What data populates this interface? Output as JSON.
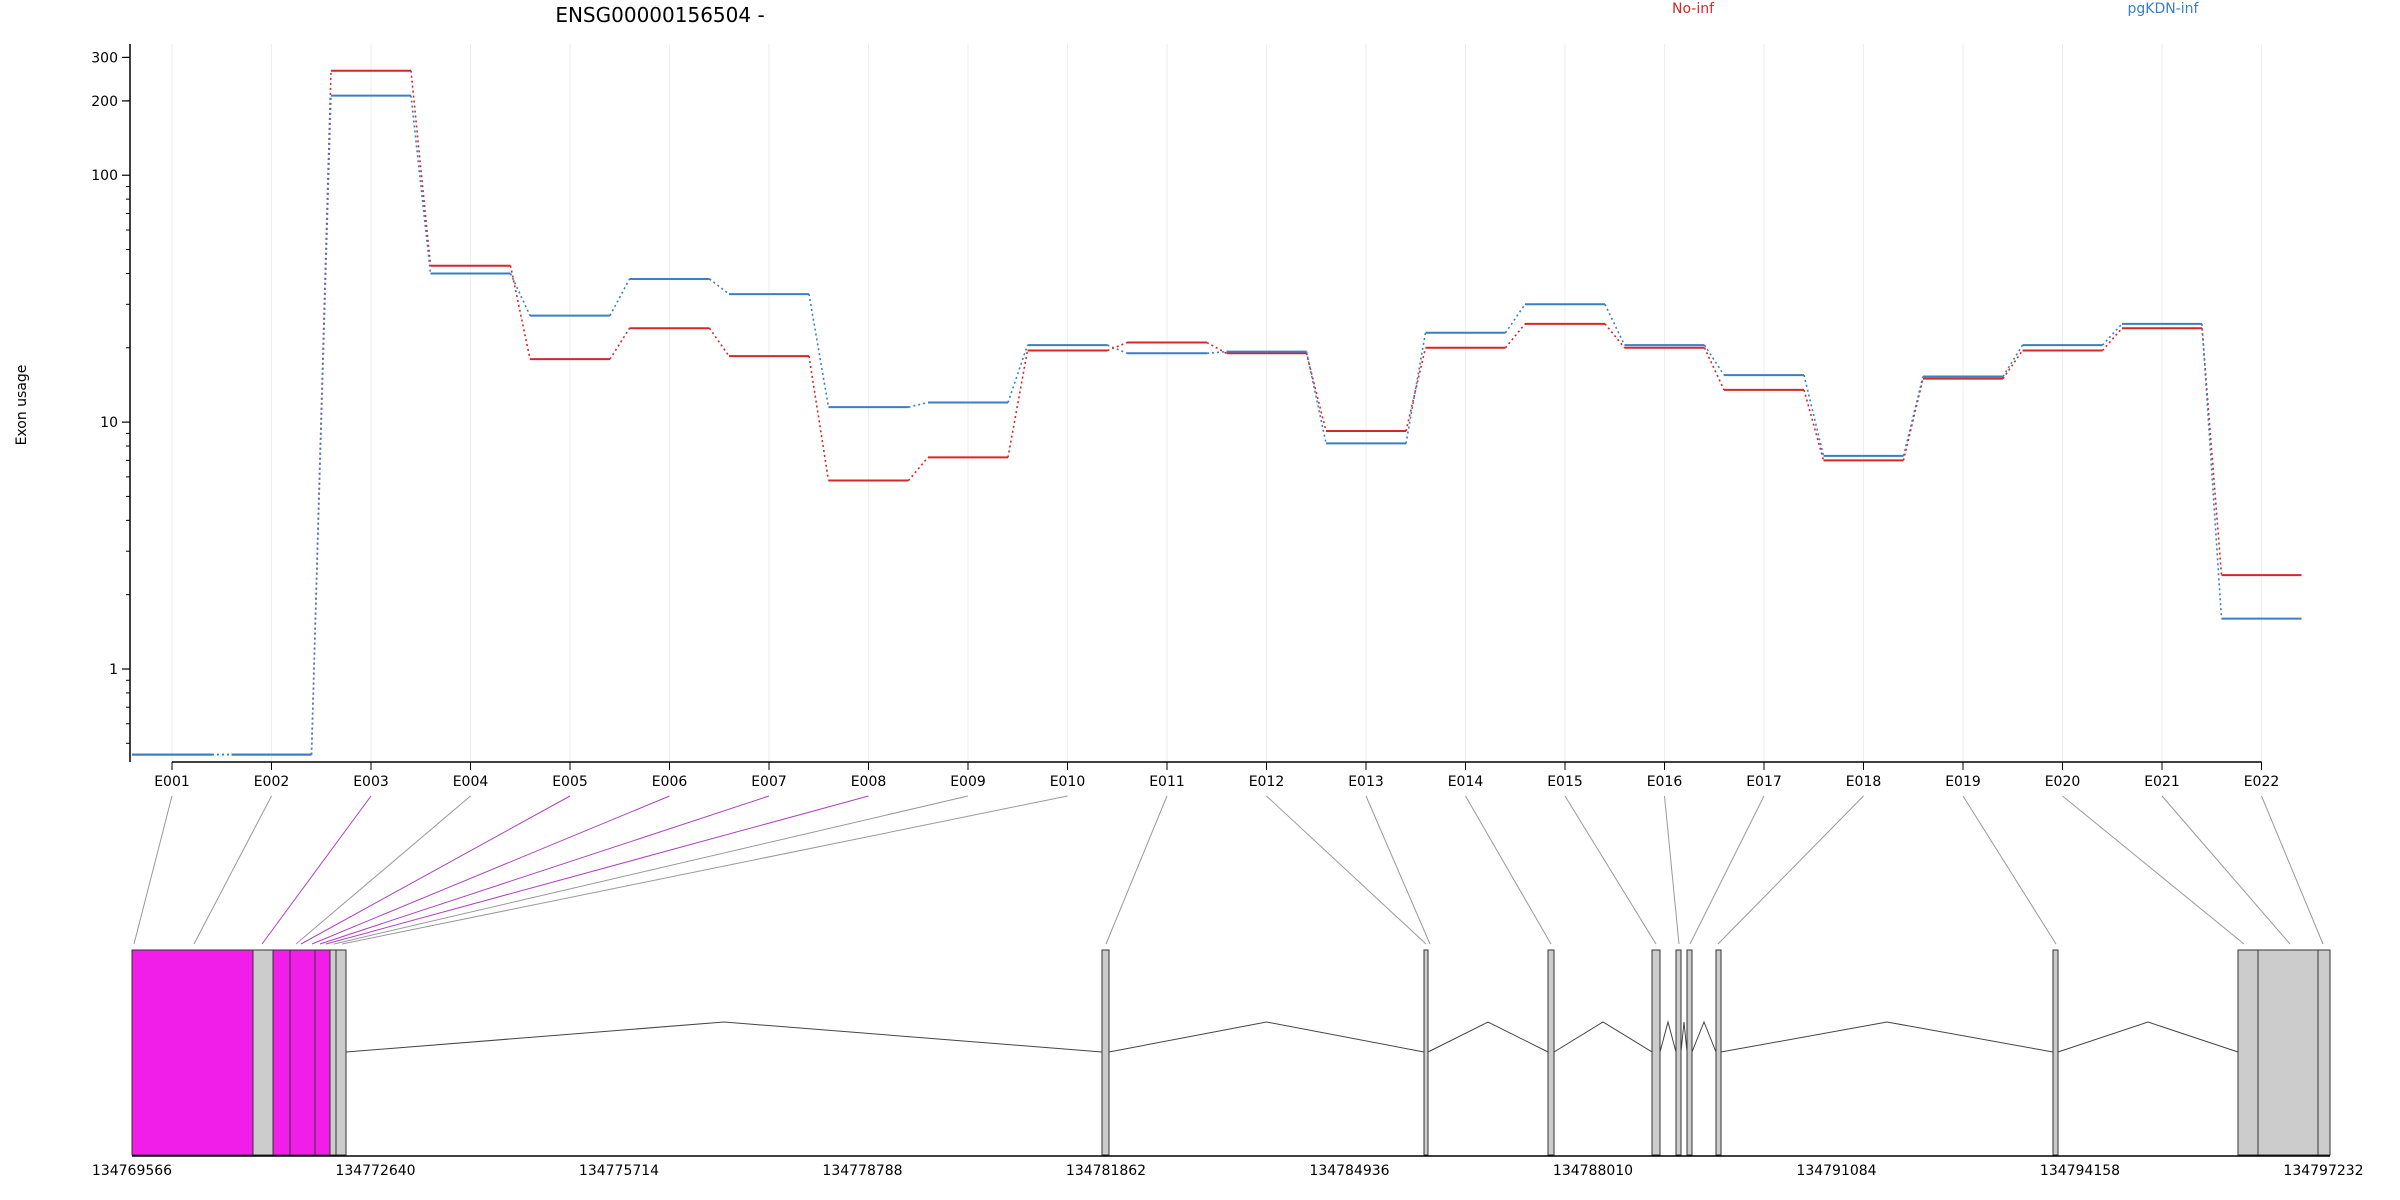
{
  "title": "ENSG00000156504 -",
  "chart_data": {
    "type": "line",
    "ylabel": "Exon usage",
    "yscale": "log",
    "ylim": [
      0.42,
      340
    ],
    "yticks": [
      1,
      10,
      100,
      200,
      300
    ],
    "ytick_labels": [
      "1",
      "10",
      "100",
      "200",
      "300"
    ],
    "categories": [
      "E001",
      "E002",
      "E003",
      "E004",
      "E005",
      "E006",
      "E007",
      "E008",
      "E009",
      "E010",
      "E011",
      "E012",
      "E013",
      "E014",
      "E015",
      "E016",
      "E017",
      "E018",
      "E019",
      "E020",
      "E021",
      "E022"
    ],
    "series": [
      {
        "name": "No-inf",
        "color": "#d62728",
        "values": [
          0.45,
          0.45,
          265,
          43,
          18,
          24,
          18.5,
          5.8,
          7.2,
          19.5,
          21,
          19,
          9.2,
          20,
          25,
          20,
          13.5,
          7,
          15,
          19.5,
          24,
          2.4
        ]
      },
      {
        "name": "pgKDN-inf",
        "color": "#3a7fc1",
        "values": [
          0.45,
          0.45,
          210,
          40,
          27,
          38,
          33,
          11.5,
          12,
          20.5,
          19,
          19.3,
          8.2,
          23,
          30,
          20.5,
          15.5,
          7.3,
          15.3,
          20.5,
          25,
          1.6
        ]
      }
    ],
    "gene_model": {
      "genomic_ticks": [
        "134769566",
        "134772640",
        "134775714",
        "134778788",
        "134781862",
        "134784936",
        "134788010",
        "134791084",
        "134794158",
        "134797232"
      ],
      "exon_connector_colors": [
        "#999999",
        "#999999",
        "#b040c0",
        "#999999",
        "#b040c0",
        "#b040c0",
        "#b040c0",
        "#b040c0",
        "#999999",
        "#999999",
        "#999999",
        "#999999",
        "#999999",
        "#999999",
        "#999999",
        "#999999",
        "#999999",
        "#999999",
        "#999999",
        "#999999",
        "#999999",
        "#999999"
      ],
      "highlight_color": "#f01ee8",
      "exon_color": "#cccccc"
    }
  }
}
